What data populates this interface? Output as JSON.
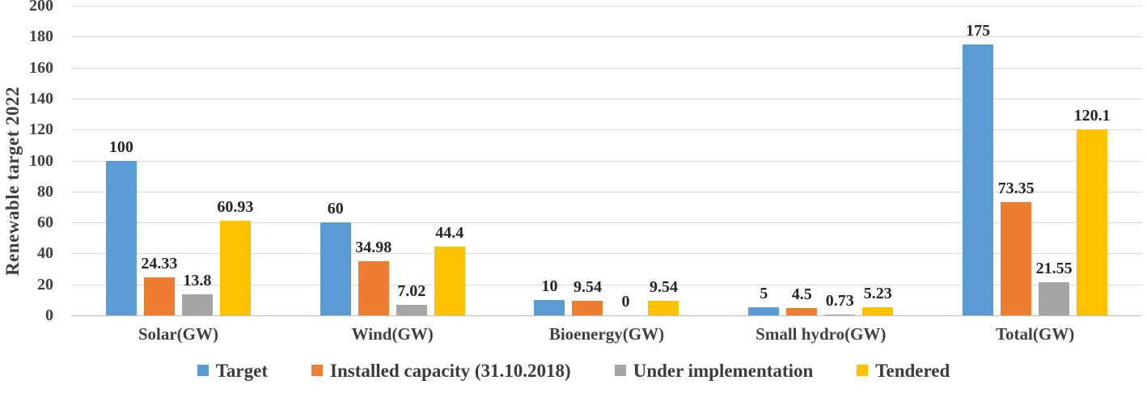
{
  "chart_data": {
    "type": "bar",
    "title": "",
    "xlabel": "",
    "ylabel": "Renewable target 2022",
    "ylim": [
      0,
      200
    ],
    "ytick_step": 20,
    "yticks": [
      0,
      20,
      40,
      60,
      80,
      100,
      120,
      140,
      160,
      180,
      200
    ],
    "grid": true,
    "legend_position": "bottom",
    "categories": [
      "Solar(GW)",
      "Wind(GW)",
      "Bioenergy(GW)",
      "Small hydro(GW)",
      "Total(GW)"
    ],
    "series": [
      {
        "name": "Target",
        "color": "#5B9BD5",
        "values": [
          100,
          60,
          10,
          5,
          175
        ]
      },
      {
        "name": "Installed capacity (31.10.2018)",
        "color": "#ED7D31",
        "values": [
          24.33,
          34.98,
          9.54,
          4.5,
          73.35
        ]
      },
      {
        "name": "Under implementation",
        "color": "#A5A5A5",
        "values": [
          13.8,
          7.02,
          0,
          0.73,
          21.55
        ]
      },
      {
        "name": "Tendered",
        "color": "#FFC000",
        "values": [
          60.93,
          44.4,
          9.54,
          5.23,
          120.1
        ]
      }
    ],
    "data_labels_shown": true
  },
  "colors": {
    "gridline": "#d9d9d9",
    "axis_line": "#bfbfbf",
    "tick_text": "#404040",
    "data_label_text": "#262626",
    "background": "#ffffff"
  }
}
